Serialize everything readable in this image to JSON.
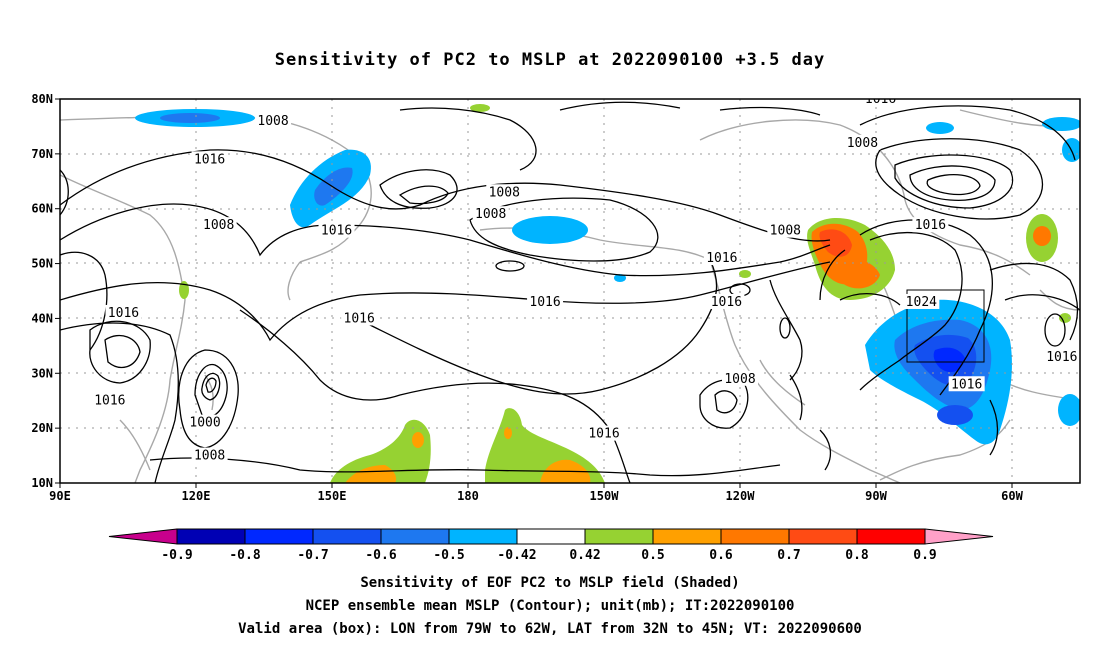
{
  "title": "Sensitivity of PC2 to MSLP at 2022090100 +3.5 day",
  "map": {
    "lon_ticks": [
      "90E",
      "120E",
      "150E",
      "180",
      "150W",
      "120W",
      "90W",
      "60W"
    ],
    "lat_ticks": [
      "80N",
      "70N",
      "60N",
      "50N",
      "40N",
      "30N",
      "20N",
      "10N"
    ],
    "lon_range": [
      90,
      315
    ],
    "lat_range": [
      10,
      80
    ],
    "valid_box": {
      "lon": [
        281,
        298
      ],
      "lat": [
        32,
        45
      ]
    }
  },
  "contour_labels": [
    {
      "text": "1016",
      "lon": 271,
      "lat": 80
    },
    {
      "text": "1008",
      "lon": 137,
      "lat": 76
    },
    {
      "text": "1016",
      "lon": 123,
      "lat": 69
    },
    {
      "text": "1008",
      "lon": 267,
      "lat": 72
    },
    {
      "text": "1008",
      "lon": 188,
      "lat": 63
    },
    {
      "text": "1008",
      "lon": 185,
      "lat": 59
    },
    {
      "text": "1008",
      "lon": 125,
      "lat": 57
    },
    {
      "text": "1016",
      "lon": 151,
      "lat": 56
    },
    {
      "text": "1008",
      "lon": 250,
      "lat": 56
    },
    {
      "text": "1016",
      "lon": 282,
      "lat": 57
    },
    {
      "text": "1016",
      "lon": 236,
      "lat": 51
    },
    {
      "text": "1016",
      "lon": 104,
      "lat": 41
    },
    {
      "text": "1016",
      "lon": 197,
      "lat": 43
    },
    {
      "text": "1016",
      "lon": 237,
      "lat": 43
    },
    {
      "text": "1024",
      "lon": 280,
      "lat": 43
    },
    {
      "text": "1016",
      "lon": 156,
      "lat": 40
    },
    {
      "text": "1016",
      "lon": 101,
      "lat": 25
    },
    {
      "text": "1000",
      "lon": 122,
      "lat": 21
    },
    {
      "text": "1008",
      "lon": 240,
      "lat": 29
    },
    {
      "text": "1016",
      "lon": 290,
      "lat": 28
    },
    {
      "text": "1016",
      "lon": 311,
      "lat": 33
    },
    {
      "text": "1016",
      "lon": 210,
      "lat": 19
    },
    {
      "text": "1008",
      "lon": 123,
      "lat": 15
    }
  ],
  "colorbar": {
    "labels": [
      "-0.9",
      "-0.8",
      "-0.7",
      "-0.6",
      "-0.5",
      "-0.42",
      "0.42",
      "0.5",
      "0.6",
      "0.7",
      "0.8",
      "0.9"
    ],
    "colors": [
      "#0000b4",
      "#0028ff",
      "#1450f0",
      "#1e78f0",
      "#00b4ff",
      "#ffffff",
      "#96d232",
      "#ffa000",
      "#ff7800",
      "#ff4b14",
      "#ff0000"
    ],
    "low_end_color": "#c8008c",
    "high_end_color": "#ffa0c8"
  },
  "captions": {
    "line1": "Sensitivity of EOF PC2 to MSLP field (Shaded)",
    "line2": "NCEP ensemble mean MSLP (Contour); unit(mb); IT:2022090100",
    "line3": "Valid area (box): LON from 79W to 62W, LAT from 32N to 45N; VT: 2022090600"
  }
}
